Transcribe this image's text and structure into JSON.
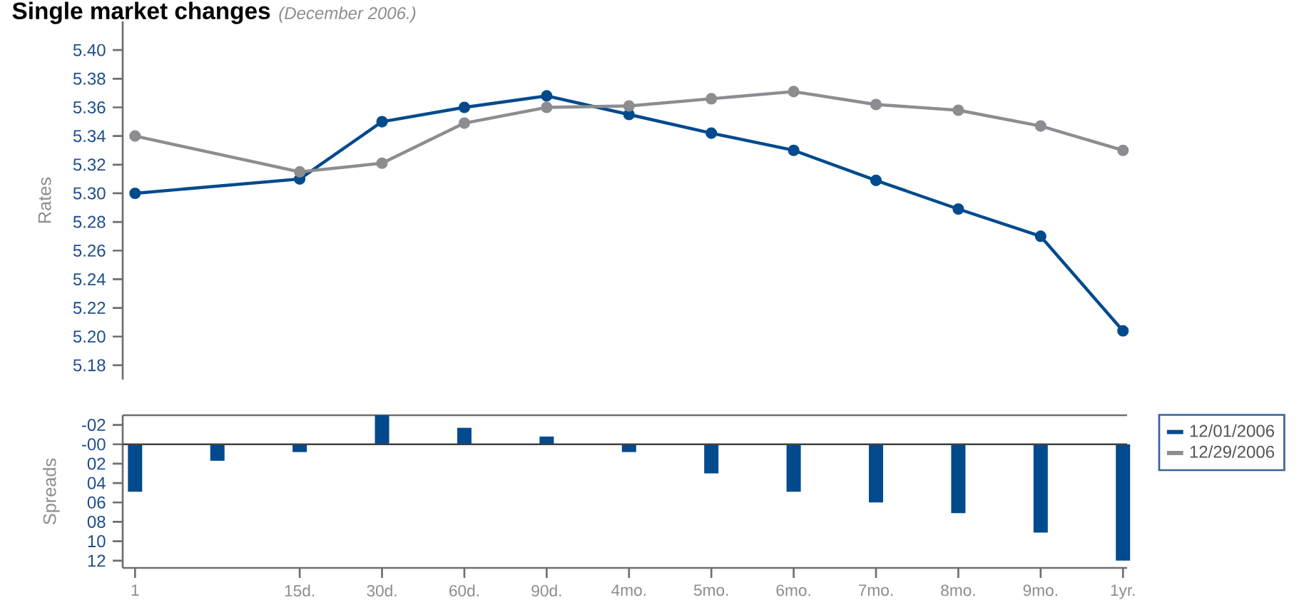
{
  "chart_data": [
    {
      "type": "line",
      "title": "Single market changes",
      "subtitle": "(December 2006.)",
      "ylabel": "Rates",
      "categories": [
        null,
        null,
        null,
        null,
        null,
        null,
        null,
        null,
        null,
        null,
        null,
        null,
        null
      ],
      "series": [
        {
          "name": "12/01/2006",
          "color": "#004a8d",
          "values": [
            5.3,
            null,
            5.31,
            5.35,
            5.36,
            5.368,
            5.355,
            5.342,
            5.33,
            5.309,
            5.289,
            5.27,
            5.204
          ]
        },
        {
          "name": "12/29/2006",
          "color": "#8c8c91",
          "values": [
            5.34,
            null,
            5.315,
            5.321,
            5.349,
            5.36,
            5.361,
            5.366,
            5.371,
            5.362,
            5.358,
            5.347,
            5.33
          ]
        }
      ],
      "ylim": [
        5.17,
        5.42
      ],
      "yticks": [
        5.18,
        5.22,
        5.24,
        5.26,
        5.28,
        {
          "value": 5.2,
          "label": "5.20"
        },
        {
          "value": 5.3,
          "label": "5.30"
        },
        5.32,
        5.34,
        5.36,
        5.38,
        {
          "value": 5.4,
          "label": "5.40"
        }
      ],
      "marker": "circle",
      "line_style": "solid",
      "legend": "right",
      "tick_labels": "y"
    },
    {
      "type": "bar",
      "ylabel": "Spreads",
      "categories": [
        "1",
        null,
        "15d.",
        "30d.",
        "60d.",
        "90d.",
        "4mo.",
        "5mo.",
        "6mo.",
        "7mo.",
        "8mo.",
        "9mo.",
        "1yr."
      ],
      "values": [
        4.9,
        1.7,
        0.8,
        -3.0,
        -1.7,
        -0.8,
        0.8,
        3.0,
        4.9,
        6.0,
        7.1,
        9.1,
        12.0
      ],
      "color": "#004a8d",
      "ylim": [
        12.75,
        -3
      ],
      "yticks": [
        {
          "value": -2,
          "label": "-02"
        },
        {
          "value": 0,
          "label": "-00"
        },
        {
          "value": 2,
          "label": "02"
        },
        {
          "value": 4,
          "label": "04"
        },
        {
          "value": 6,
          "label": "06"
        },
        {
          "value": 8,
          "label": "08"
        },
        {
          "value": 10,
          "label": "10"
        },
        {
          "value": 12,
          "label": "12"
        }
      ],
      "ref_lines": [
        {
          "axis": "y",
          "value": 0,
          "color": "#404040"
        }
      ]
    }
  ]
}
